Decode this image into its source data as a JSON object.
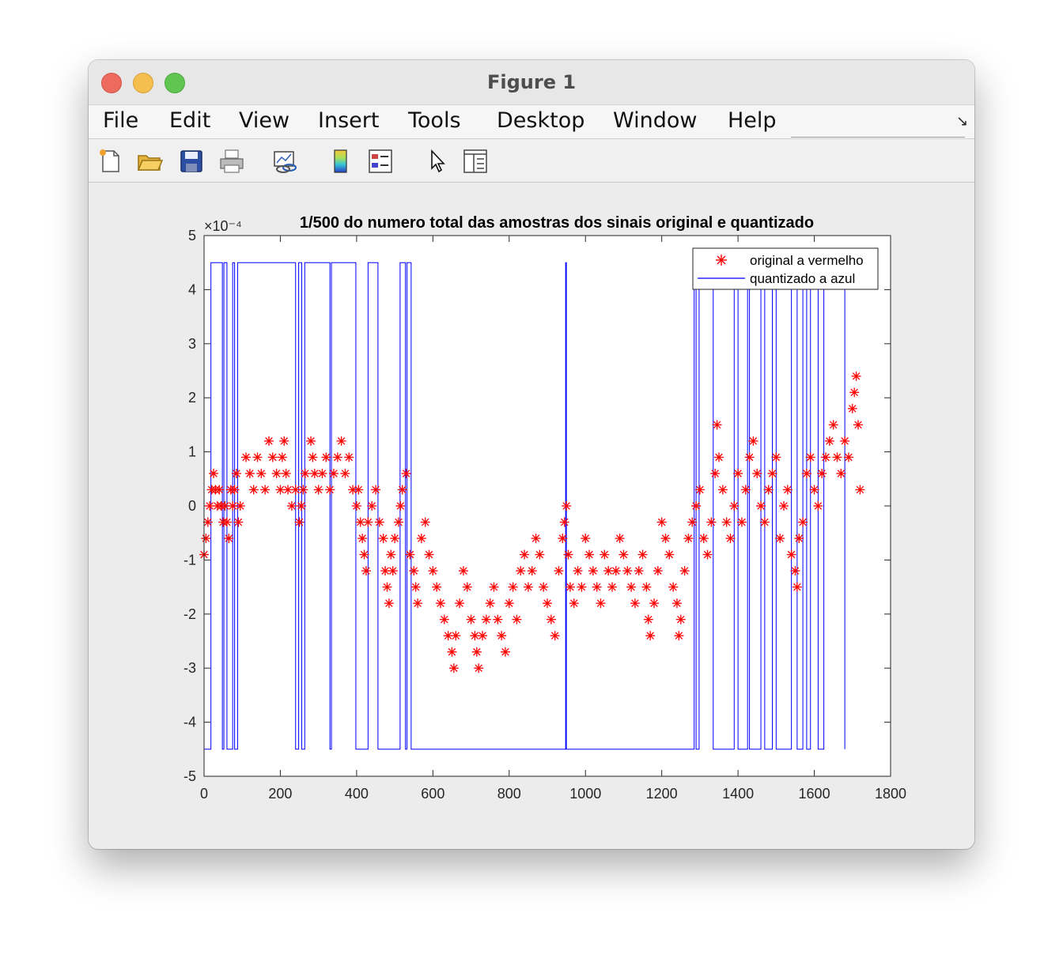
{
  "window": {
    "title": "Figure 1"
  },
  "menu": {
    "items": [
      "File",
      "Edit",
      "View",
      "Insert",
      "Tools",
      "Desktop",
      "Window",
      "Help"
    ]
  },
  "toolbar": {
    "tools": [
      {
        "name": "new-figure-icon"
      },
      {
        "name": "open-file-icon"
      },
      {
        "name": "save-icon"
      },
      {
        "name": "print-icon"
      },
      {
        "name": "link-plot-icon"
      },
      {
        "name": "colorbar-icon"
      },
      {
        "name": "legend-icon"
      },
      {
        "name": "edit-plot-pointer-icon"
      },
      {
        "name": "property-inspector-icon"
      }
    ]
  },
  "chart_data": {
    "type": "scatter",
    "title": "1/500 do numero total das amostras dos sinais original e quantizado",
    "xlabel": "",
    "ylabel": "",
    "xlim": [
      0,
      1800
    ],
    "ylim": [
      -5,
      5
    ],
    "y_exponent": "×10⁻⁴",
    "x_ticks": [
      "0",
      "200",
      "400",
      "600",
      "800",
      "1000",
      "1200",
      "1400",
      "1600",
      "1800"
    ],
    "y_ticks": [
      "5",
      "4",
      "3",
      "2",
      "1",
      "0",
      "-1",
      "-2",
      "-3",
      "-4",
      "-5"
    ],
    "legend": {
      "placement": "top-right",
      "entries": [
        "original a vermelho",
        "quantizado a azul"
      ]
    },
    "series": [
      {
        "name": "original a vermelho",
        "color": "#ff0000",
        "marker": "asterisk",
        "points": [
          [
            0,
            -0.9
          ],
          [
            5,
            -0.6
          ],
          [
            10,
            -0.3
          ],
          [
            15,
            0
          ],
          [
            20,
            0.3
          ],
          [
            25,
            0.6
          ],
          [
            30,
            0.3
          ],
          [
            35,
            0
          ],
          [
            40,
            0.3
          ],
          [
            45,
            0
          ],
          [
            50,
            -0.3
          ],
          [
            55,
            0
          ],
          [
            60,
            -0.3
          ],
          [
            65,
            -0.6
          ],
          [
            70,
            0.3
          ],
          [
            75,
            0
          ],
          [
            80,
            0.3
          ],
          [
            85,
            0.6
          ],
          [
            90,
            -0.3
          ],
          [
            95,
            0
          ],
          [
            110,
            0.9
          ],
          [
            120,
            0.6
          ],
          [
            130,
            0.3
          ],
          [
            140,
            0.9
          ],
          [
            150,
            0.6
          ],
          [
            160,
            0.3
          ],
          [
            170,
            1.2
          ],
          [
            180,
            0.9
          ],
          [
            190,
            0.6
          ],
          [
            200,
            0.3
          ],
          [
            205,
            0.9
          ],
          [
            210,
            1.2
          ],
          [
            215,
            0.6
          ],
          [
            220,
            0.3
          ],
          [
            230,
            0
          ],
          [
            240,
            0.3
          ],
          [
            250,
            -0.3
          ],
          [
            255,
            0
          ],
          [
            260,
            0.3
          ],
          [
            265,
            0.6
          ],
          [
            280,
            1.2
          ],
          [
            285,
            0.9
          ],
          [
            290,
            0.6
          ],
          [
            300,
            0.3
          ],
          [
            310,
            0.6
          ],
          [
            320,
            0.9
          ],
          [
            330,
            0.3
          ],
          [
            340,
            0.6
          ],
          [
            350,
            0.9
          ],
          [
            360,
            1.2
          ],
          [
            370,
            0.6
          ],
          [
            380,
            0.9
          ],
          [
            390,
            0.3
          ],
          [
            400,
            0
          ],
          [
            405,
            0.3
          ],
          [
            410,
            -0.3
          ],
          [
            415,
            -0.6
          ],
          [
            420,
            -0.9
          ],
          [
            425,
            -1.2
          ],
          [
            430,
            -0.3
          ],
          [
            440,
            0
          ],
          [
            450,
            0.3
          ],
          [
            460,
            -0.3
          ],
          [
            470,
            -0.6
          ],
          [
            475,
            -1.2
          ],
          [
            480,
            -1.5
          ],
          [
            485,
            -1.8
          ],
          [
            490,
            -0.9
          ],
          [
            495,
            -1.2
          ],
          [
            500,
            -0.6
          ],
          [
            510,
            -0.3
          ],
          [
            515,
            0
          ],
          [
            520,
            0.3
          ],
          [
            530,
            0.6
          ],
          [
            540,
            -0.9
          ],
          [
            550,
            -1.2
          ],
          [
            555,
            -1.5
          ],
          [
            560,
            -1.8
          ],
          [
            570,
            -0.6
          ],
          [
            580,
            -0.3
          ],
          [
            590,
            -0.9
          ],
          [
            600,
            -1.2
          ],
          [
            610,
            -1.5
          ],
          [
            620,
            -1.8
          ],
          [
            630,
            -2.1
          ],
          [
            640,
            -2.4
          ],
          [
            650,
            -2.7
          ],
          [
            655,
            -3.0
          ],
          [
            660,
            -2.4
          ],
          [
            670,
            -1.8
          ],
          [
            680,
            -1.2
          ],
          [
            690,
            -1.5
          ],
          [
            700,
            -2.1
          ],
          [
            710,
            -2.4
          ],
          [
            715,
            -2.7
          ],
          [
            720,
            -3.0
          ],
          [
            730,
            -2.4
          ],
          [
            740,
            -2.1
          ],
          [
            750,
            -1.8
          ],
          [
            760,
            -1.5
          ],
          [
            770,
            -2.1
          ],
          [
            780,
            -2.4
          ],
          [
            790,
            -2.7
          ],
          [
            800,
            -1.8
          ],
          [
            810,
            -1.5
          ],
          [
            820,
            -2.1
          ],
          [
            830,
            -1.2
          ],
          [
            840,
            -0.9
          ],
          [
            850,
            -1.5
          ],
          [
            860,
            -1.2
          ],
          [
            870,
            -0.6
          ],
          [
            880,
            -0.9
          ],
          [
            890,
            -1.5
          ],
          [
            900,
            -1.8
          ],
          [
            910,
            -2.1
          ],
          [
            920,
            -2.4
          ],
          [
            930,
            -1.2
          ],
          [
            940,
            -0.6
          ],
          [
            945,
            -0.3
          ],
          [
            950,
            0
          ],
          [
            955,
            -0.9
          ],
          [
            960,
            -1.5
          ],
          [
            970,
            -1.8
          ],
          [
            980,
            -1.2
          ],
          [
            990,
            -1.5
          ],
          [
            1000,
            -0.6
          ],
          [
            1010,
            -0.9
          ],
          [
            1020,
            -1.2
          ],
          [
            1030,
            -1.5
          ],
          [
            1040,
            -1.8
          ],
          [
            1050,
            -0.9
          ],
          [
            1060,
            -1.2
          ],
          [
            1070,
            -1.5
          ],
          [
            1080,
            -1.2
          ],
          [
            1090,
            -0.6
          ],
          [
            1100,
            -0.9
          ],
          [
            1110,
            -1.2
          ],
          [
            1120,
            -1.5
          ],
          [
            1130,
            -1.8
          ],
          [
            1140,
            -1.2
          ],
          [
            1150,
            -0.9
          ],
          [
            1160,
            -1.5
          ],
          [
            1165,
            -2.1
          ],
          [
            1170,
            -2.4
          ],
          [
            1180,
            -1.8
          ],
          [
            1190,
            -1.2
          ],
          [
            1200,
            -0.3
          ],
          [
            1210,
            -0.6
          ],
          [
            1220,
            -0.9
          ],
          [
            1230,
            -1.5
          ],
          [
            1240,
            -1.8
          ],
          [
            1245,
            -2.4
          ],
          [
            1250,
            -2.1
          ],
          [
            1260,
            -1.2
          ],
          [
            1270,
            -0.6
          ],
          [
            1280,
            -0.3
          ],
          [
            1290,
            0
          ],
          [
            1300,
            0.3
          ],
          [
            1310,
            -0.6
          ],
          [
            1320,
            -0.9
          ],
          [
            1330,
            -0.3
          ],
          [
            1340,
            0.6
          ],
          [
            1345,
            1.5
          ],
          [
            1350,
            0.9
          ],
          [
            1360,
            0.3
          ],
          [
            1370,
            -0.3
          ],
          [
            1380,
            -0.6
          ],
          [
            1390,
            0
          ],
          [
            1400,
            0.6
          ],
          [
            1410,
            -0.3
          ],
          [
            1420,
            0.3
          ],
          [
            1430,
            0.9
          ],
          [
            1440,
            1.2
          ],
          [
            1450,
            0.6
          ],
          [
            1460,
            0
          ],
          [
            1470,
            -0.3
          ],
          [
            1480,
            0.3
          ],
          [
            1490,
            0.6
          ],
          [
            1500,
            0.9
          ],
          [
            1510,
            -0.6
          ],
          [
            1520,
            0
          ],
          [
            1530,
            0.3
          ],
          [
            1540,
            -0.9
          ],
          [
            1550,
            -1.2
          ],
          [
            1555,
            -1.5
          ],
          [
            1560,
            -0.6
          ],
          [
            1570,
            -0.3
          ],
          [
            1580,
            0.6
          ],
          [
            1590,
            0.9
          ],
          [
            1600,
            0.3
          ],
          [
            1610,
            0
          ],
          [
            1620,
            0.6
          ],
          [
            1630,
            0.9
          ],
          [
            1640,
            1.2
          ],
          [
            1650,
            1.5
          ],
          [
            1660,
            0.9
          ],
          [
            1670,
            0.6
          ],
          [
            1680,
            1.2
          ],
          [
            1690,
            0.9
          ],
          [
            1700,
            1.8
          ],
          [
            1705,
            2.1
          ],
          [
            1710,
            2.4
          ],
          [
            1715,
            1.5
          ],
          [
            1720,
            0.3
          ]
        ]
      },
      {
        "name": "quantizado a azul",
        "color": "#0000ff",
        "levels": [
          -4.5,
          4.5
        ],
        "steps": [
          [
            0,
            -4.5
          ],
          [
            18,
            -4.5
          ],
          [
            18,
            4.5
          ],
          [
            48,
            4.5
          ],
          [
            48,
            -4.5
          ],
          [
            52,
            -4.5
          ],
          [
            52,
            4.5
          ],
          [
            60,
            4.5
          ],
          [
            60,
            -4.5
          ],
          [
            75,
            -4.5
          ],
          [
            75,
            4.5
          ],
          [
            80,
            4.5
          ],
          [
            80,
            -4.5
          ],
          [
            88,
            -4.5
          ],
          [
            88,
            4.5
          ],
          [
            240,
            4.5
          ],
          [
            240,
            -4.5
          ],
          [
            248,
            -4.5
          ],
          [
            248,
            4.5
          ],
          [
            256,
            4.5
          ],
          [
            256,
            -4.5
          ],
          [
            264,
            -4.5
          ],
          [
            264,
            4.5
          ],
          [
            330,
            4.5
          ],
          [
            330,
            -4.5
          ],
          [
            334,
            -4.5
          ],
          [
            334,
            4.5
          ],
          [
            398,
            4.5
          ],
          [
            398,
            -4.5
          ],
          [
            430,
            -4.5
          ],
          [
            430,
            4.5
          ],
          [
            456,
            4.5
          ],
          [
            456,
            -4.5
          ],
          [
            514,
            -4.5
          ],
          [
            514,
            4.5
          ],
          [
            528,
            4.5
          ],
          [
            528,
            -4.5
          ],
          [
            532,
            -4.5
          ],
          [
            532,
            4.5
          ],
          [
            543,
            4.5
          ],
          [
            543,
            -4.5
          ],
          [
            948,
            -4.5
          ],
          [
            948,
            4.5
          ],
          [
            950,
            4.5
          ],
          [
            950,
            -4.5
          ],
          [
            1285,
            -4.5
          ],
          [
            1285,
            4.5
          ],
          [
            1290,
            4.5
          ],
          [
            1290,
            -4.5
          ],
          [
            1298,
            -4.5
          ],
          [
            1298,
            4.5
          ],
          [
            1335,
            4.5
          ],
          [
            1335,
            -4.5
          ],
          [
            1390,
            -4.5
          ],
          [
            1390,
            4.5
          ],
          [
            1400,
            4.5
          ],
          [
            1400,
            -4.5
          ],
          [
            1425,
            -4.5
          ],
          [
            1425,
            4.5
          ],
          [
            1430,
            4.5
          ],
          [
            1430,
            -4.5
          ],
          [
            1460,
            -4.5
          ],
          [
            1460,
            4.5
          ],
          [
            1470,
            4.5
          ],
          [
            1470,
            -4.5
          ],
          [
            1490,
            -4.5
          ],
          [
            1490,
            4.5
          ],
          [
            1500,
            4.5
          ],
          [
            1500,
            -4.5
          ],
          [
            1540,
            -4.5
          ],
          [
            1540,
            4.5
          ],
          [
            1555,
            4.5
          ],
          [
            1555,
            -4.5
          ],
          [
            1570,
            -4.5
          ],
          [
            1570,
            4.5
          ],
          [
            1580,
            4.5
          ],
          [
            1580,
            -4.5
          ],
          [
            1590,
            -4.5
          ],
          [
            1590,
            4.5
          ],
          [
            1610,
            4.5
          ],
          [
            1610,
            -4.5
          ],
          [
            1625,
            -4.5
          ],
          [
            1625,
            4.5
          ],
          [
            1680,
            4.5
          ],
          [
            1680,
            -4.5
          ]
        ]
      }
    ]
  }
}
